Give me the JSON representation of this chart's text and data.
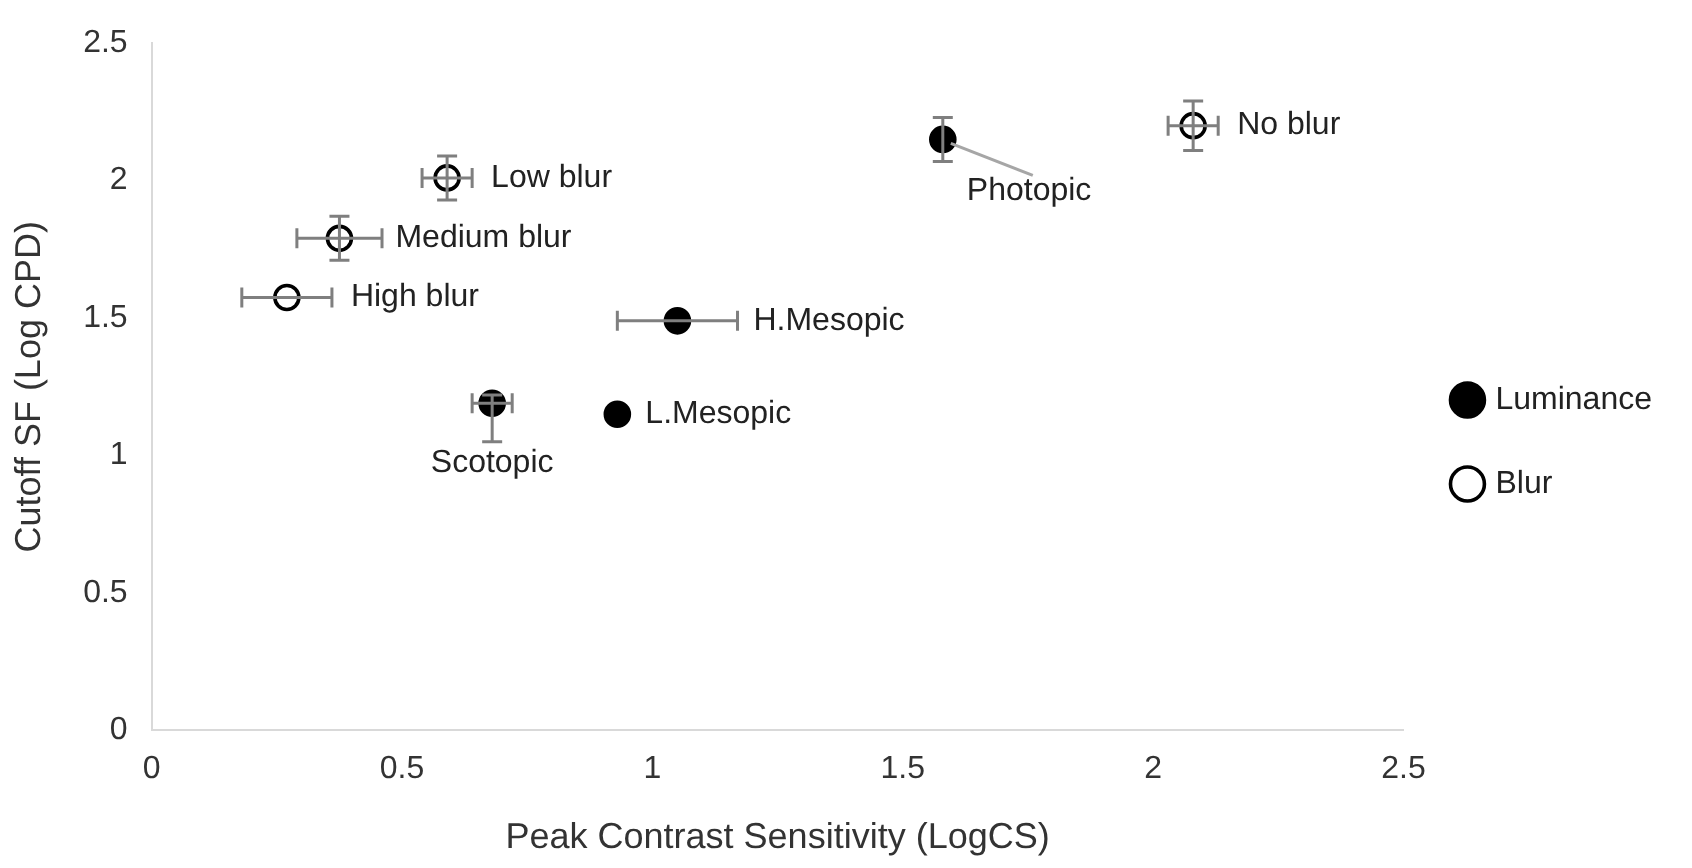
{
  "chart_data": {
    "type": "scatter",
    "xlabel": "Peak Contrast Sensitivity (LogCS)",
    "ylabel": "Cutoff SF (Log CPD)",
    "xlim": [
      0,
      2.5
    ],
    "xticks": [
      0,
      0.5,
      1,
      1.5,
      2,
      2.5
    ],
    "ylim": [
      0,
      2.5
    ],
    "yticks": [
      0,
      0.5,
      1,
      1.5,
      2,
      2.5
    ],
    "grid": false,
    "legend": "right",
    "marker": "circle",
    "series": [
      {
        "name": "Luminance",
        "color": "#000000",
        "x": [
          1.58,
          1.05,
          0.93,
          0.68
        ],
        "values": [
          2.15,
          1.49,
          1.15,
          1.19
        ],
        "errors": [
          0.08,
          null,
          null,
          [
            1.05,
            1.22
          ]
        ],
        "xerrors": [
          null,
          0.12,
          null,
          0.04
        ]
      },
      {
        "name": "Blur",
        "color": "#000000",
        "x": [
          2.08,
          0.59,
          0.375,
          0.27
        ],
        "values": [
          2.2,
          2.01,
          1.79,
          1.575
        ],
        "errors": [
          0.09,
          0.08,
          0.08,
          null
        ],
        "xerrors": [
          0.05,
          0.05,
          0.085,
          0.09
        ]
      }
    ],
    "annotations": [
      {
        "text": "Photopic",
        "x": 1.58,
        "y": 2.15
      },
      {
        "text": "H.Mesopic",
        "x": 1.05,
        "y": 1.49
      },
      {
        "text": "L.Mesopic",
        "x": 0.93,
        "y": 1.15
      },
      {
        "text": "Scotopic",
        "x": 0.68,
        "y": 1.19
      },
      {
        "text": "No blur",
        "x": 2.08,
        "y": 2.2
      },
      {
        "text": "Low blur",
        "x": 0.59,
        "y": 2.01
      },
      {
        "text": "Medium blur",
        "x": 0.375,
        "y": 1.79
      },
      {
        "text": "High blur",
        "x": 0.27,
        "y": 1.575
      }
    ]
  }
}
